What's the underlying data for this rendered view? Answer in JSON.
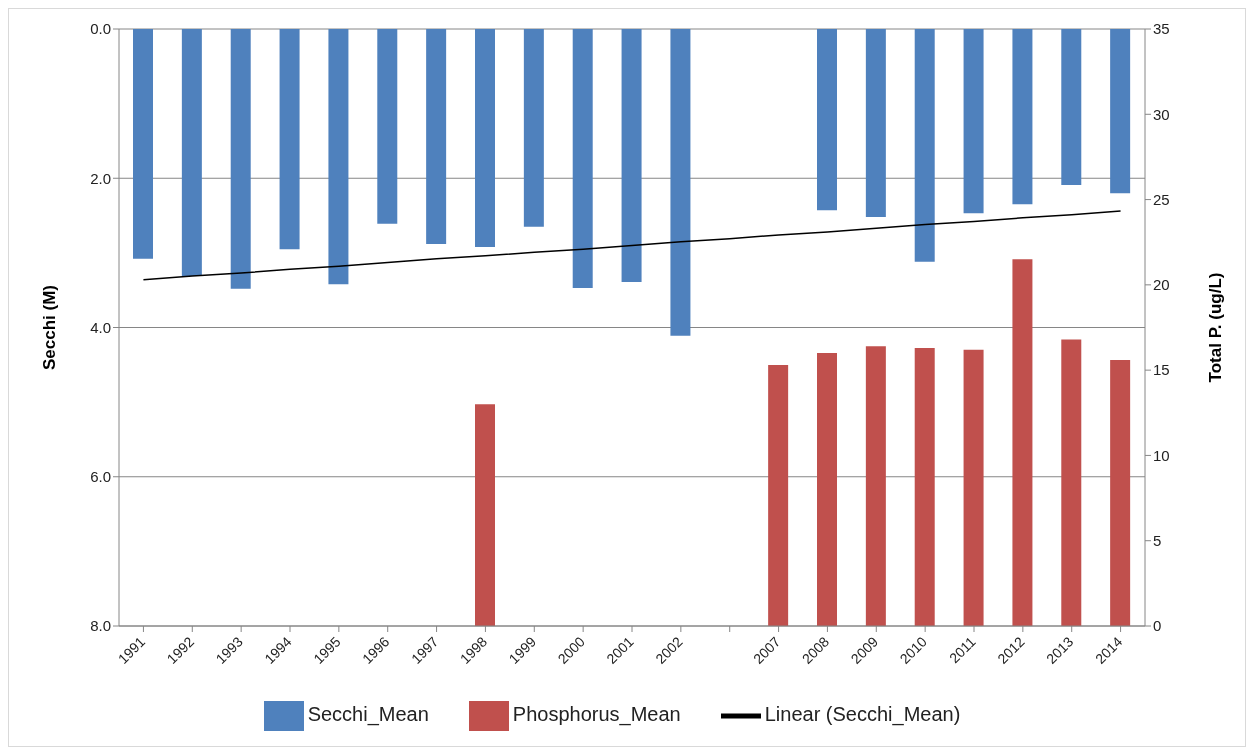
{
  "chart_data": {
    "type": "bar",
    "categories": [
      "1991",
      "1992",
      "1993",
      "1994",
      "1995",
      "1996",
      "1997",
      "1998",
      "1999",
      "2000",
      "2001",
      "2002",
      null,
      "2007",
      "2008",
      "2009",
      "2010",
      "2011",
      "2012",
      "2013",
      "2014"
    ],
    "series": [
      {
        "name": "Secchi_Mean",
        "color": "#4f81bd",
        "values": [
          3.08,
          3.31,
          3.48,
          2.95,
          3.42,
          2.61,
          2.88,
          2.92,
          2.65,
          3.47,
          3.39,
          4.11,
          null,
          null,
          2.43,
          2.52,
          3.12,
          2.47,
          2.35,
          2.09,
          2.2
        ]
      },
      {
        "name": "Phosphorus_Mean",
        "color": "#c0504d",
        "axis": "y2",
        "values": [
          null,
          null,
          null,
          null,
          null,
          null,
          null,
          13.0,
          null,
          null,
          null,
          null,
          null,
          15.3,
          16.0,
          16.4,
          16.3,
          16.2,
          21.5,
          16.8,
          15.6
        ]
      },
      {
        "name": "Linear (Secchi_Mean)",
        "type": "line",
        "color": "#000000",
        "marker": "none",
        "line_style": "solid",
        "values": [
          3.36,
          3.31,
          3.27,
          3.22,
          3.18,
          3.13,
          3.08,
          3.04,
          2.99,
          2.95,
          2.9,
          2.85,
          2.81,
          2.76,
          2.72,
          2.67,
          2.62,
          2.58,
          2.53,
          2.49,
          2.44
        ]
      }
    ],
    "ylabel": "Secchi (M)",
    "y2label": "Total P. (ug/L)",
    "ylim": [
      8,
      0
    ],
    "yticks": [
      {
        "value": 0,
        "label": "0.0"
      },
      {
        "value": 2,
        "label": "2.0"
      },
      {
        "value": 4,
        "label": "4.0"
      },
      {
        "value": 6,
        "label": "6.0"
      },
      {
        "value": 8,
        "label": "8.0"
      }
    ],
    "y2lim": [
      0,
      35
    ],
    "y2ticks": [
      0,
      5,
      10,
      15,
      20,
      25,
      30,
      35
    ],
    "grid": "y",
    "legend": "bottom"
  }
}
